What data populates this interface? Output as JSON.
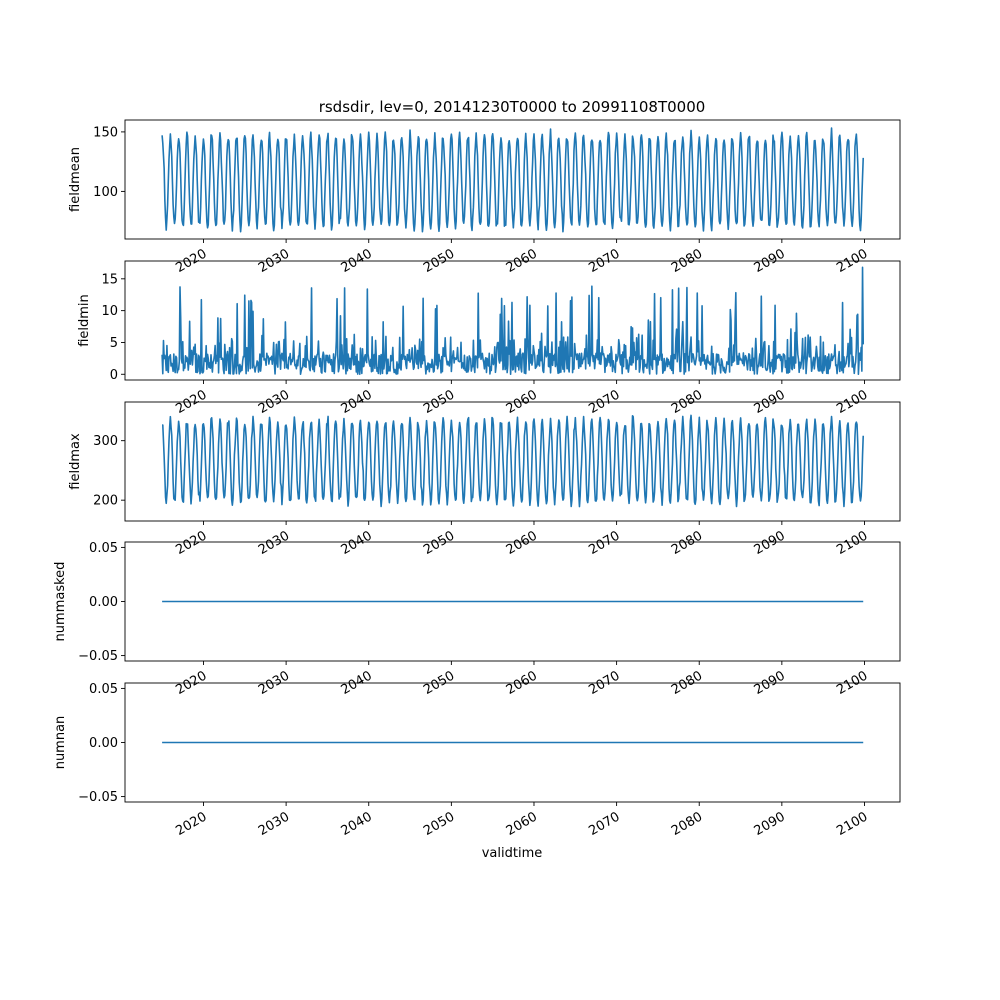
{
  "figure": {
    "title": "rsdsdir, lev=0, 20141230T0000 to 20991108T0000",
    "xlabel": "validtime",
    "line_color": "#1f77b4"
  },
  "chart_data": [
    {
      "type": "line",
      "ylabel": "fieldmean",
      "x_range": [
        2010.5,
        2104.3
      ],
      "ylim": [
        60,
        160
      ],
      "yticks": [
        100,
        150
      ],
      "ytick_labels": [
        "100",
        "150"
      ],
      "xticks": [
        2020,
        2030,
        2040,
        2050,
        2060,
        2070,
        2080,
        2090,
        2100
      ],
      "xtick_labels": [
        "2020",
        "2030",
        "2040",
        "2050",
        "2060",
        "2070",
        "2080",
        "2090",
        "2100"
      ],
      "series": [
        {
          "x_start": 2014.99,
          "x_end": 2099.85,
          "pattern": "annual",
          "mean": 108,
          "amplitude": 38,
          "spread": 4,
          "min": 65,
          "max": 156
        }
      ]
    },
    {
      "type": "line",
      "ylabel": "fieldmin",
      "x_range": [
        2010.5,
        2104.3
      ],
      "ylim": [
        -0.9,
        17.8
      ],
      "yticks": [
        0,
        5,
        10,
        15
      ],
      "ytick_labels": [
        "0",
        "5",
        "10",
        "15"
      ],
      "xticks": [
        2020,
        2030,
        2040,
        2050,
        2060,
        2070,
        2080,
        2090,
        2100
      ],
      "xtick_labels": [
        "2020",
        "2030",
        "2040",
        "2050",
        "2060",
        "2070",
        "2080",
        "2090",
        "2100"
      ],
      "series": [
        {
          "x_start": 2014.99,
          "x_end": 2099.85,
          "pattern": "noisy",
          "baseline": 1.5,
          "min": 0,
          "max": 16.8
        }
      ]
    },
    {
      "type": "line",
      "ylabel": "fieldmax",
      "x_range": [
        2010.5,
        2104.3
      ],
      "ylim": [
        165,
        365
      ],
      "yticks": [
        200,
        300
      ],
      "ytick_labels": [
        "200",
        "300"
      ],
      "xticks": [
        2020,
        2030,
        2040,
        2050,
        2060,
        2070,
        2080,
        2090,
        2100
      ],
      "xtick_labels": [
        "2020",
        "2030",
        "2040",
        "2050",
        "2060",
        "2070",
        "2080",
        "2090",
        "2100"
      ],
      "series": [
        {
          "x_start": 2014.99,
          "x_end": 2099.85,
          "pattern": "annual",
          "mean": 265,
          "amplitude": 68,
          "spread": 8,
          "min": 173,
          "max": 358
        }
      ]
    },
    {
      "type": "line",
      "ylabel": "nummasked",
      "x_range": [
        2010.5,
        2104.3
      ],
      "ylim": [
        -0.055,
        0.055
      ],
      "yticks": [
        -0.05,
        0,
        0.05
      ],
      "ytick_labels": [
        "−0.05",
        "0.00",
        "0.05"
      ],
      "xticks": [
        2020,
        2030,
        2040,
        2050,
        2060,
        2070,
        2080,
        2090,
        2100
      ],
      "xtick_labels": [
        "2020",
        "2030",
        "2040",
        "2050",
        "2060",
        "2070",
        "2080",
        "2090",
        "2100"
      ],
      "series": [
        {
          "x": [
            2014.99,
            2099.85
          ],
          "y": [
            0,
            0
          ]
        }
      ]
    },
    {
      "type": "line",
      "ylabel": "numnan",
      "x_range": [
        2010.5,
        2104.3
      ],
      "ylim": [
        -0.055,
        0.055
      ],
      "yticks": [
        -0.05,
        0,
        0.05
      ],
      "ytick_labels": [
        "−0.05",
        "0.00",
        "0.05"
      ],
      "xticks": [
        2020,
        2030,
        2040,
        2050,
        2060,
        2070,
        2080,
        2090,
        2100
      ],
      "xtick_labels": [
        "2020",
        "2030",
        "2040",
        "2050",
        "2060",
        "2070",
        "2080",
        "2090",
        "2100"
      ],
      "series": [
        {
          "x": [
            2014.99,
            2099.85
          ],
          "y": [
            0,
            0
          ]
        }
      ]
    }
  ]
}
